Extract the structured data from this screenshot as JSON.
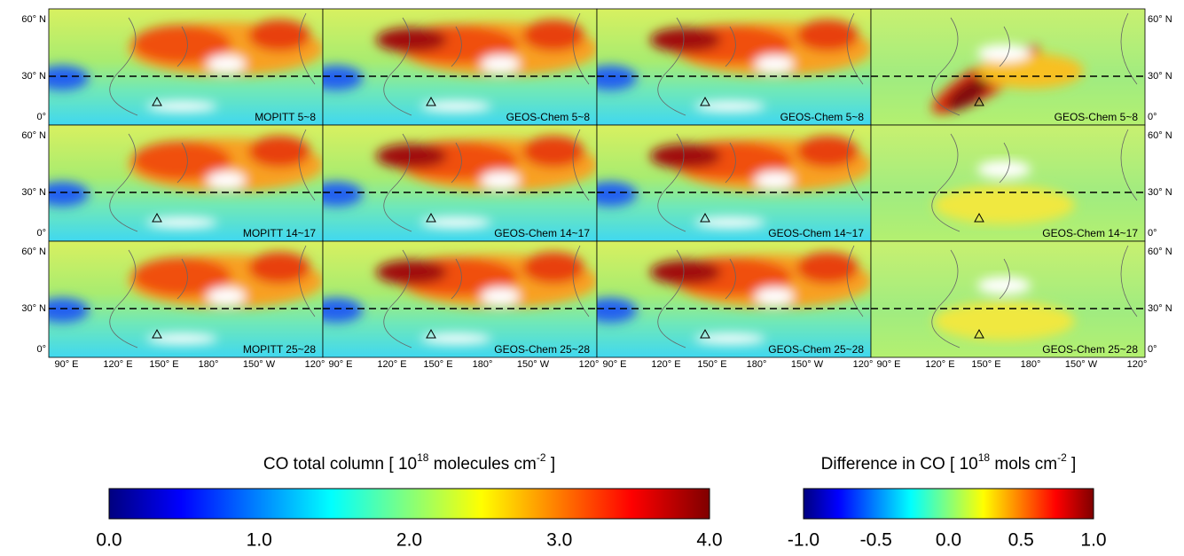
{
  "y_axis_labels": [
    "60° N",
    "30° N",
    "0°"
  ],
  "x_axis_labels": [
    "90° E",
    "120° E",
    "150° E",
    "180°",
    "150° W",
    "120°"
  ],
  "panels": [
    [
      "MOPITT 5~8",
      "GEOS-Chem 5~8",
      "GEOS-Chem 5~8",
      "GEOS-Chem 5~8"
    ],
    [
      "MOPITT 14~17",
      "GEOS-Chem 14~17",
      "GEOS-Chem 14~17",
      "GEOS-Chem 14~17"
    ],
    [
      "MOPITT 25~28",
      "GEOS-Chem 25~28",
      "GEOS-Chem 25~28",
      "GEOS-Chem 25~28"
    ]
  ],
  "colorbars": [
    {
      "title": [
        "CO total column [ 10",
        "18",
        " molecules cm",
        "-2",
        " ]"
      ],
      "ticks": [
        "0.0",
        "1.0",
        "2.0",
        "3.0",
        "4.0"
      ]
    },
    {
      "title": [
        "Difference in CO [ 10",
        "18",
        " mols cm",
        "-2",
        " ]"
      ],
      "ticks": [
        "-1.0",
        "-0.5",
        "0.0",
        "0.5",
        "1.0"
      ]
    }
  ]
}
